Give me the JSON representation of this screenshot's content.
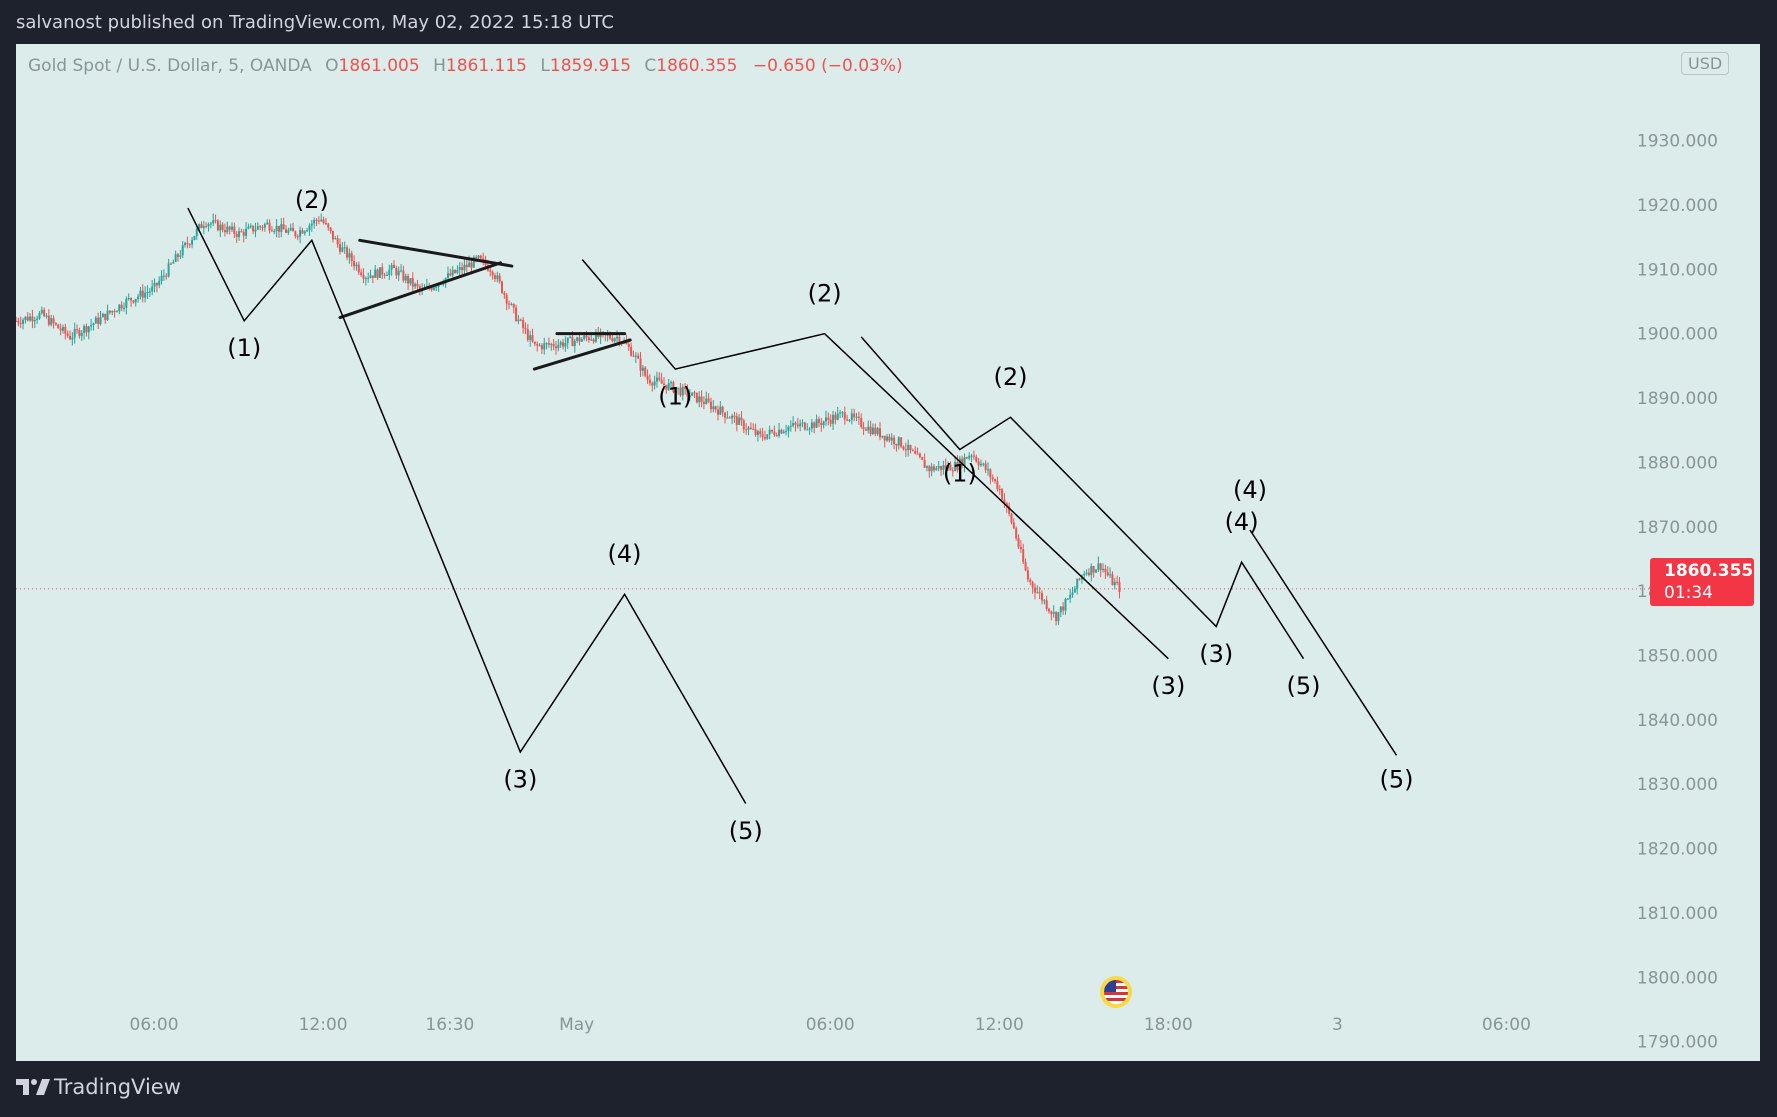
{
  "header": {
    "publish_text": "salvanost published on TradingView.com, May 02, 2022 15:18 UTC"
  },
  "legend": {
    "symbol": "Gold Spot / U.S. Dollar, 5, OANDA",
    "open_label": "O",
    "open": "1861.005",
    "high_label": "H",
    "high": "1861.115",
    "low_label": "L",
    "low": "1859.915",
    "close_label": "C",
    "close": "1860.355",
    "change": "−0.650 (−0.03%)"
  },
  "currency": "USD",
  "last_price": {
    "price": "1860.355",
    "countdown": "01:34"
  },
  "footer": {
    "brand": "TradingView"
  },
  "colors": {
    "background": "#dbeceb",
    "frame": "#1e222d",
    "up_candle": "#26a69a",
    "down_candle": "#ef5350",
    "wave_line": "#000000",
    "price_tag": "#f23645"
  },
  "chart_data": {
    "type": "candlestick",
    "ylim": [
      1787,
      1945
    ],
    "y_ticks": [
      1790,
      1800,
      1810,
      1820,
      1830,
      1840,
      1850,
      1860,
      1870,
      1880,
      1890,
      1900,
      1910,
      1920,
      1930
    ],
    "y_tick_labels": [
      "1790.000",
      "1800.000",
      "1810.000",
      "1820.000",
      "1830.000",
      "1840.000",
      "1850.000",
      "1860.000",
      "1870.000",
      "1880.000",
      "1890.000",
      "1900.000",
      "1910.000",
      "1920.000",
      "1930.000"
    ],
    "x_unit": "hours since Apr 29 00:00 UTC (May 1 is the next trading session)",
    "x_range": [
      1.1,
      58.6
    ],
    "x_ticks": [
      {
        "label": "06:00",
        "x": 6
      },
      {
        "label": "12:00",
        "x": 12
      },
      {
        "label": "16:30",
        "x": 16.5
      },
      {
        "label": "May",
        "x": 21
      },
      {
        "label": "06:00",
        "x": 30
      },
      {
        "label": "12:00",
        "x": 36
      },
      {
        "label": "18:00",
        "x": 42
      },
      {
        "label": "3",
        "x": 48
      },
      {
        "label": "06:00",
        "x": 54
      }
    ],
    "price_path": [
      [
        1.1,
        1902.0
      ],
      [
        2.0,
        1903.0
      ],
      [
        3.0,
        1899.5
      ],
      [
        4.0,
        1902.0
      ],
      [
        5.0,
        1905.0
      ],
      [
        6.0,
        1907.0
      ],
      [
        7.0,
        1913.0
      ],
      [
        7.8,
        1917.5
      ],
      [
        9.0,
        1915.5
      ],
      [
        10.0,
        1917.0
      ],
      [
        11.0,
        1915.5
      ],
      [
        11.9,
        1918.0
      ],
      [
        12.5,
        1914.0
      ],
      [
        13.5,
        1909.0
      ],
      [
        14.5,
        1910.0
      ],
      [
        15.5,
        1906.5
      ],
      [
        16.5,
        1909.0
      ],
      [
        17.5,
        1911.5
      ],
      [
        18.0,
        1910.0
      ],
      [
        18.8,
        1903.0
      ],
      [
        19.5,
        1898.0
      ],
      [
        20.5,
        1898.5
      ],
      [
        21.5,
        1899.5
      ],
      [
        22.5,
        1899.5
      ],
      [
        23.0,
        1897.0
      ],
      [
        23.5,
        1893.0
      ],
      [
        24.5,
        1891.5
      ],
      [
        25.5,
        1889.5
      ],
      [
        26.5,
        1887.0
      ],
      [
        27.5,
        1884.0
      ],
      [
        28.5,
        1885.5
      ],
      [
        29.5,
        1886.0
      ],
      [
        30.5,
        1887.5
      ],
      [
        31.5,
        1885.0
      ],
      [
        32.5,
        1883.0
      ],
      [
        33.5,
        1879.0
      ],
      [
        34.5,
        1879.5
      ],
      [
        35.0,
        1881.5
      ],
      [
        35.5,
        1879.0
      ],
      [
        36.0,
        1876.0
      ],
      [
        36.5,
        1870.0
      ],
      [
        37.0,
        1862.0
      ],
      [
        37.5,
        1859.0
      ],
      [
        38.0,
        1856.0
      ],
      [
        38.5,
        1859.0
      ],
      [
        39.0,
        1863.0
      ],
      [
        39.6,
        1864.0
      ],
      [
        40.0,
        1861.5
      ],
      [
        40.3,
        1860.355
      ]
    ],
    "last_price": 1860.355,
    "elliott_waves": [
      {
        "points": [
          [
            7.2,
            1919.5
          ],
          [
            9.2,
            1902.0
          ],
          [
            11.6,
            1914.5
          ],
          [
            19.0,
            1835.0
          ],
          [
            22.7,
            1859.5
          ],
          [
            27.0,
            1827.0
          ]
        ],
        "labels": [
          {
            "text": "(1)",
            "x": 9.2,
            "y": 1896.5
          },
          {
            "text": "(2)",
            "x": 11.6,
            "y": 1919.5
          },
          {
            "text": "(3)",
            "x": 19.0,
            "y": 1829.5
          },
          {
            "text": "(4)",
            "x": 22.7,
            "y": 1864.5
          },
          {
            "text": "(5)",
            "x": 27.0,
            "y": 1821.5
          }
        ]
      },
      {
        "points": [
          [
            21.2,
            1911.5
          ],
          [
            24.5,
            1894.5
          ],
          [
            29.8,
            1900.0
          ],
          [
            42.0,
            1849.5
          ]
        ],
        "labels": [
          {
            "text": "(1)",
            "x": 24.5,
            "y": 1889.0
          },
          {
            "text": "(2)",
            "x": 29.8,
            "y": 1905.0
          },
          {
            "text": "(3)",
            "x": 42.0,
            "y": 1844.0
          }
        ]
      },
      {
        "points": [
          [
            31.1,
            1899.5
          ],
          [
            34.6,
            1882.0
          ],
          [
            36.4,
            1887.0
          ],
          [
            43.7,
            1854.5
          ],
          [
            44.6,
            1864.5
          ],
          [
            46.8,
            1849.5
          ]
        ],
        "labels": [
          {
            "text": "(1)",
            "x": 34.6,
            "y": 1877.0
          },
          {
            "text": "(2)",
            "x": 36.4,
            "y": 1892.0
          },
          {
            "text": "(3)",
            "x": 43.7,
            "y": 1849.0
          },
          {
            "text": "(4)",
            "x": 44.6,
            "y": 1869.5
          },
          {
            "text": "(5)",
            "x": 46.8,
            "y": 1844.0
          }
        ]
      },
      {
        "points": [
          [
            44.9,
            1869.5
          ],
          [
            50.1,
            1834.5
          ]
        ],
        "labels": [
          {
            "text": "(4)",
            "x": 44.9,
            "y": 1874.5
          },
          {
            "text": "(5)",
            "x": 50.1,
            "y": 1829.5
          }
        ]
      }
    ],
    "triangles": [
      {
        "upper": [
          [
            13.3,
            1914.5
          ],
          [
            18.7,
            1910.5
          ]
        ],
        "lower": [
          [
            12.6,
            1902.5
          ],
          [
            18.3,
            1911.0
          ]
        ]
      },
      {
        "upper": [
          [
            20.3,
            1900.0
          ],
          [
            22.7,
            1900.0
          ]
        ],
        "lower": [
          [
            19.5,
            1894.5
          ],
          [
            22.9,
            1899.0
          ]
        ]
      }
    ]
  }
}
